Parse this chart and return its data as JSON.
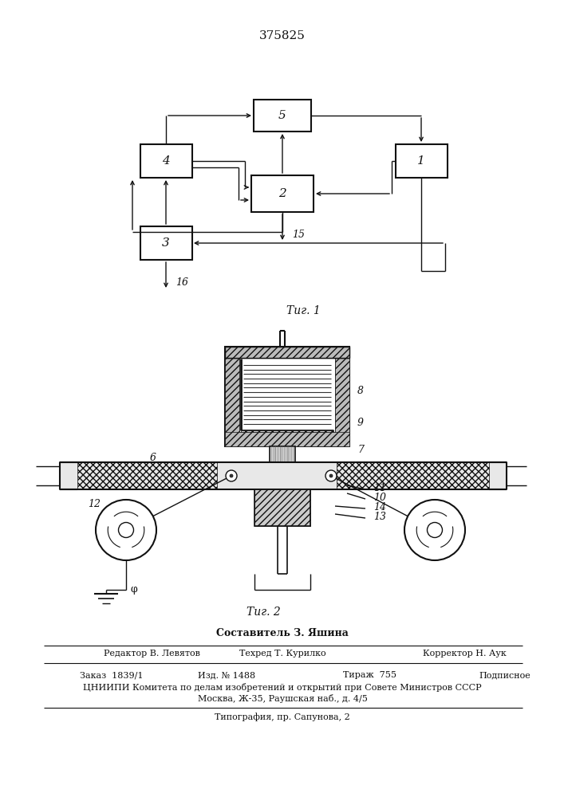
{
  "title": "375825",
  "bg_color": "#ffffff",
  "line_color": "#111111",
  "fig1_label": "Τиг. 1",
  "fig2_label": "Τиг. 2",
  "bottom": {
    "sostavitel": "Составитель З. Яшина",
    "redaktor": "Редактор В. Левятов",
    "tehred": "Техред Т. Курилко",
    "korrektor": "Корректор Н. Аук",
    "zakaz": "Заказ  1839/1",
    "izd": "Изд. № 1488",
    "tirazh": "Тираж  755",
    "podpisnoe": "Подписное",
    "tsniip": "ЦНИИПИ Комитета по делам изобретений и открытий при Совете Министров СССР",
    "moskva": "Москва, Ж-35, Раушская наб., д. 4/5",
    "tipografia": "Типография, пр. Сапунова, 2"
  }
}
